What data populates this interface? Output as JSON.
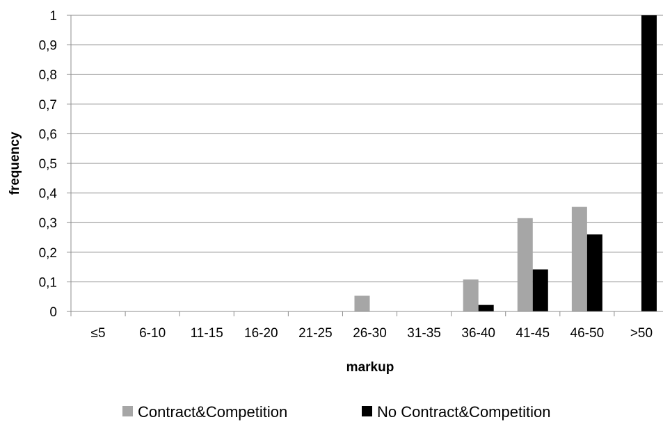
{
  "chart_data": {
    "type": "bar",
    "categories": [
      "≤5",
      "6-10",
      "11-15",
      "16-20",
      "21-25",
      "26-30",
      "31-35",
      "36-40",
      "41-45",
      "46-50",
      ">50"
    ],
    "series": [
      {
        "name": "Contract&Competition",
        "color": "#a6a6a6",
        "values": [
          0,
          0,
          0,
          0,
          0,
          0.053,
          0,
          0.108,
          0.315,
          0.353,
          0
        ]
      },
      {
        "name": "No Contract&Competition",
        "color": "#000000",
        "values": [
          0,
          0,
          0,
          0,
          0,
          0,
          0,
          0.022,
          0.142,
          0.26,
          1
        ]
      }
    ],
    "xlabel": "markup",
    "ylabel": "frequency",
    "ylim": [
      0,
      1
    ],
    "yticks": [
      "0",
      "0,1",
      "0,2",
      "0,3",
      "0,4",
      "0,5",
      "0,6",
      "0,7",
      "0,8",
      "0,9",
      "1"
    ],
    "grid": true,
    "legend_position": "bottom"
  }
}
